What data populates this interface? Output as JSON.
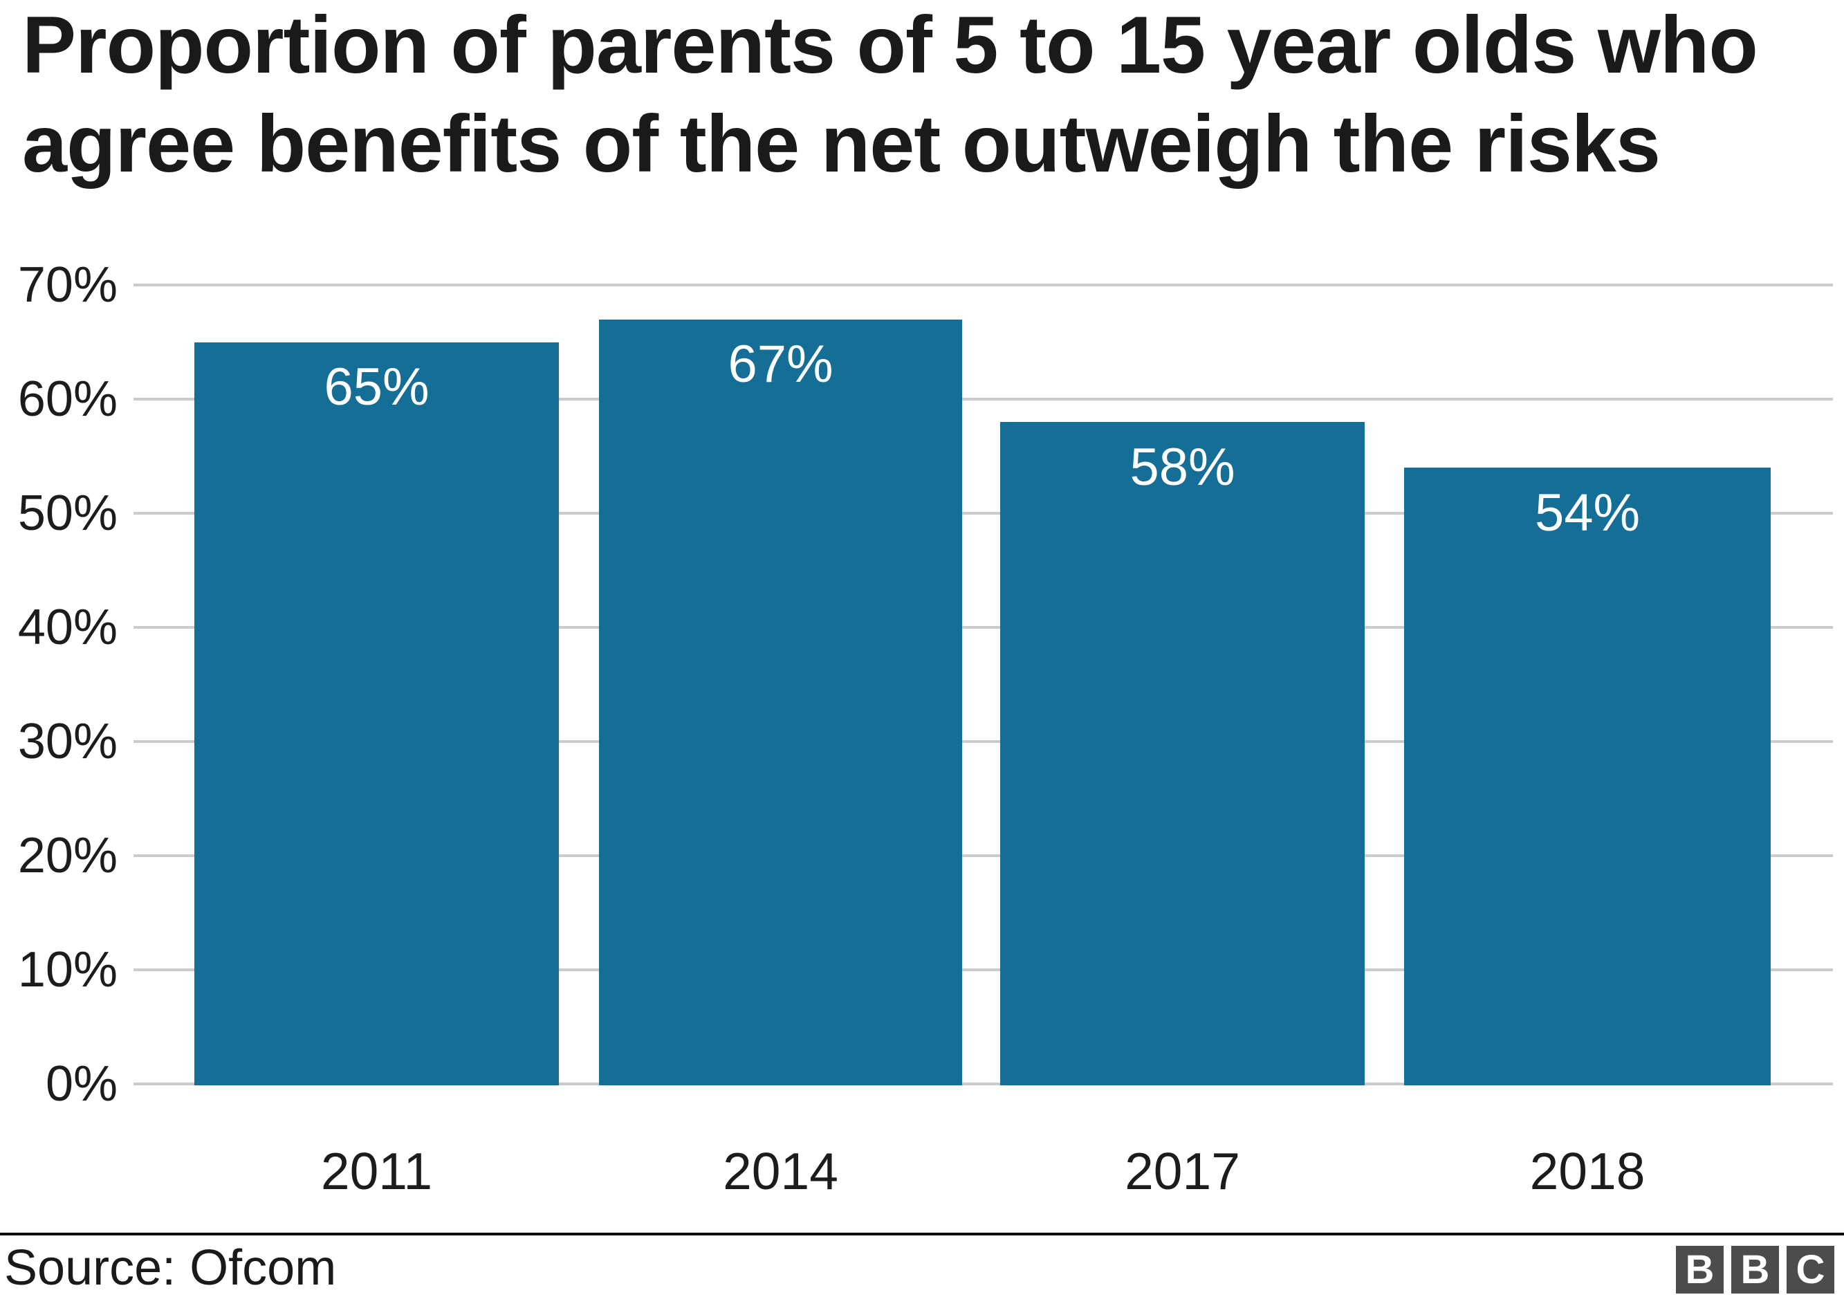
{
  "chart_data": {
    "type": "bar",
    "title": "Proportion of parents of 5 to 15 year olds who agree benefits of the net outweigh the risks",
    "title_lines": [
      "Proportion of parents of 5 to 15 year olds who",
      "agree benefits of the net outweigh the risks"
    ],
    "categories": [
      "2011",
      "2014",
      "2017",
      "2018"
    ],
    "values": [
      65,
      67,
      58,
      54
    ],
    "value_labels": [
      "65%",
      "67%",
      "58%",
      "54%"
    ],
    "y_ticks": [
      "70%",
      "60%",
      "50%",
      "40%",
      "30%",
      "20%",
      "10%",
      "0%"
    ],
    "y_tick_values": [
      70,
      60,
      50,
      40,
      30,
      20,
      10,
      0
    ],
    "ylim": [
      0,
      70
    ],
    "grid": true,
    "legend": "none",
    "bar_color": "#146E96",
    "gridline_color": "#cbcbcb",
    "value_label_color": "#ffffff"
  },
  "footer": {
    "source": "Source: Ofcom",
    "logo_letters": [
      "B",
      "B",
      "C"
    ]
  }
}
